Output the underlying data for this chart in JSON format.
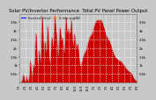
{
  "title": "Solar PV/Inverter Performance  Total PV Panel Power Output",
  "title_fontsize": 3.8,
  "bg_color": "#c8c8c8",
  "plot_bg_color": "#c8c8c8",
  "fill_color": "#cc0000",
  "line_color": "#cc0000",
  "grid_color": "#ffffff",
  "grid_style": ":",
  "tick_fontsize": 2.8,
  "ylim": [
    0,
    4000
  ],
  "yticks": [
    500,
    1000,
    1500,
    2000,
    2500,
    3000,
    3500
  ],
  "ytick_labels": [
    "0.5k",
    "1k",
    "1.5k",
    "2k",
    "2.5k",
    "3k",
    "3.5k"
  ],
  "num_points": 300,
  "legend_label1": "Inverter1+Inv2",
  "legend_label2": "5 min avg(W)",
  "legend_color1": "#0000ff",
  "legend_color2": "#ff8800",
  "border_color": "#888888"
}
